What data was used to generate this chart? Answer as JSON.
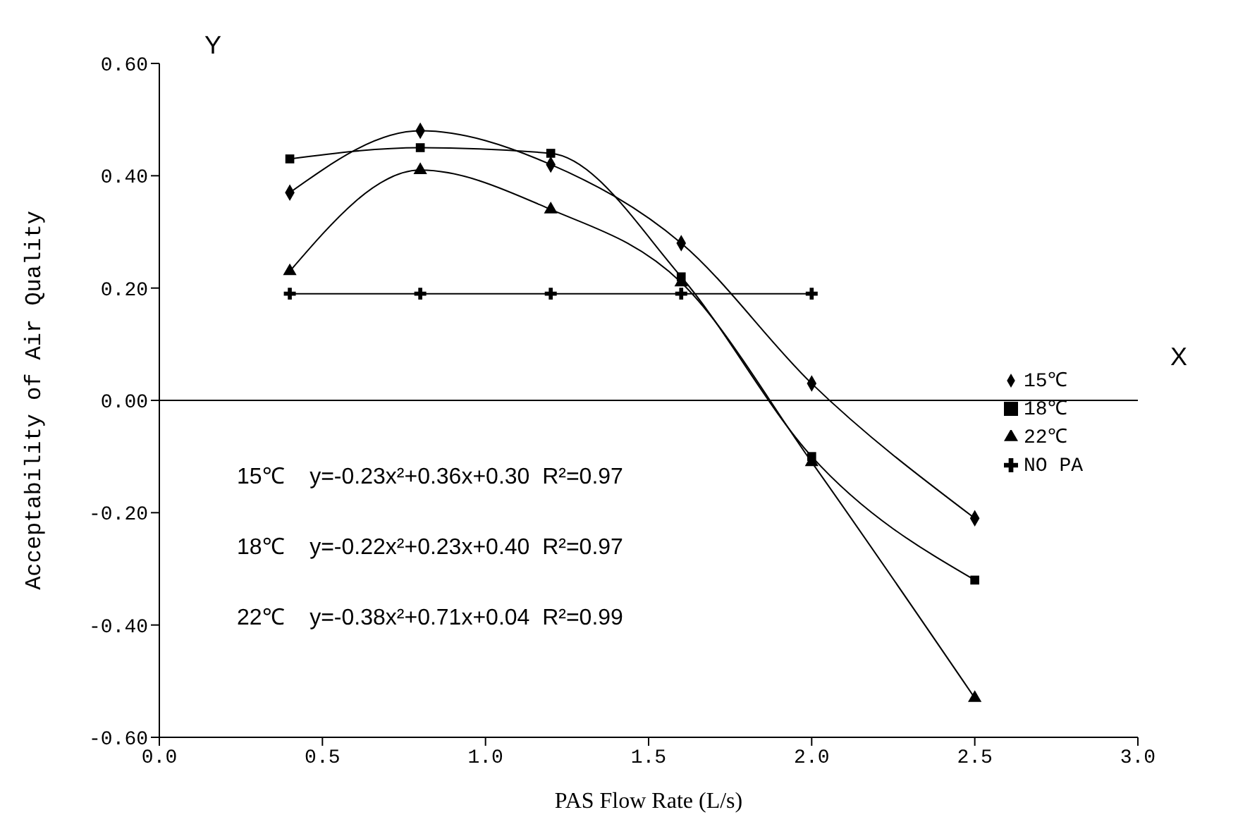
{
  "chart_data": {
    "type": "line",
    "xlabel": "PAS Flow Rate (L/s)",
    "ylabel": "Acceptability of Air Quality",
    "x": [
      0.4,
      0.8,
      1.2,
      1.6,
      2.0,
      2.5
    ],
    "series": [
      {
        "name": "15℃",
        "color": "#000000",
        "marker": "diamond",
        "values": [
          0.37,
          0.48,
          0.42,
          0.28,
          0.03,
          -0.21
        ]
      },
      {
        "name": "18℃",
        "color": "#000000",
        "marker": "square",
        "values": [
          0.43,
          0.45,
          0.44,
          0.22,
          -0.1,
          -0.32
        ]
      },
      {
        "name": "22℃",
        "color": "#000000",
        "marker": "triangle",
        "values": [
          0.23,
          0.41,
          0.34,
          0.21,
          -0.11,
          -0.53
        ]
      },
      {
        "name": "NO PA",
        "color": "#000000",
        "marker": "cross",
        "values": [
          0.19,
          0.19,
          0.19,
          0.19,
          0.19,
          null
        ]
      }
    ],
    "xlim": [
      0,
      3
    ],
    "xticks": [
      {
        "value": 0,
        "label": "0.0"
      },
      0.5,
      {
        "value": 1,
        "label": "1.0"
      },
      1.5,
      {
        "value": 2,
        "label": "2.0"
      },
      2.5,
      {
        "value": 3,
        "label": "3.0"
      }
    ],
    "ylim": [
      -0.6,
      0.6
    ],
    "yticks": [
      {
        "value": -0.6,
        "label": "-0.60"
      },
      {
        "value": -0.4,
        "label": "-0.40"
      },
      {
        "value": -0.2,
        "label": "-0.20"
      },
      {
        "value": 0,
        "label": "0.00"
      },
      {
        "value": 0.2,
        "label": "0.20"
      },
      {
        "value": 0.4,
        "label": "0.40"
      },
      {
        "value": 0.6,
        "label": "0.60"
      }
    ],
    "ref_lines": [
      {
        "axis": "y",
        "value": 0,
        "color": "#000000"
      }
    ],
    "annotations": [
      "Y",
      "X",
      "15℃    y=-0.23x²+0.36x+0.30  R²=0.97",
      "18℃    y=-0.22x²+0.23x+0.40  R²=0.97",
      "22℃    y=-0.38x²+0.71x+0.04  R²=0.99"
    ],
    "grid": false,
    "legend": "right",
    "line_style": "solid"
  }
}
